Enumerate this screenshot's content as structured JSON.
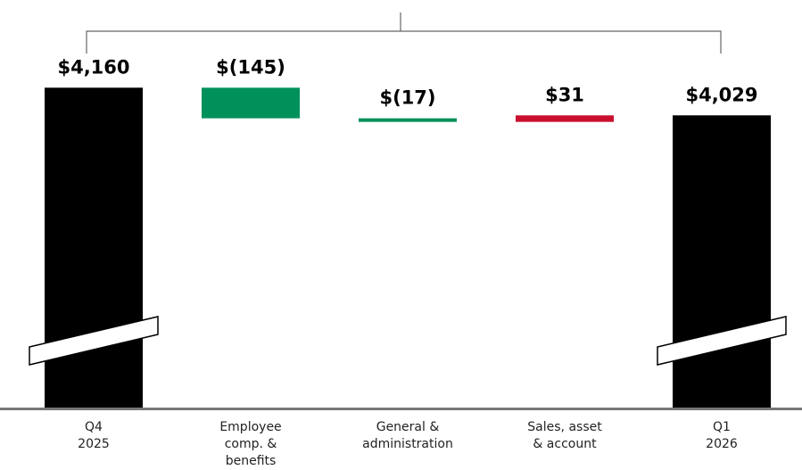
{
  "chart_data": {
    "type": "waterfall",
    "categories": [
      "Q4\n2025",
      "Employee\ncomp. &\nbenefits",
      "General &\nadministration",
      "Sales, asset\n& account",
      "Q1\n2026"
    ],
    "values": [
      4160,
      -145,
      -17,
      31,
      4029
    ],
    "value_labels": [
      "$4,160",
      "$(145)",
      "$(17)",
      "$31",
      "$4,029"
    ],
    "colors": {
      "total": "#000000",
      "decrease": "#00915a",
      "increase": "#c8102e"
    },
    "ylim": [
      2640,
      4240
    ],
    "axis_break": true
  }
}
